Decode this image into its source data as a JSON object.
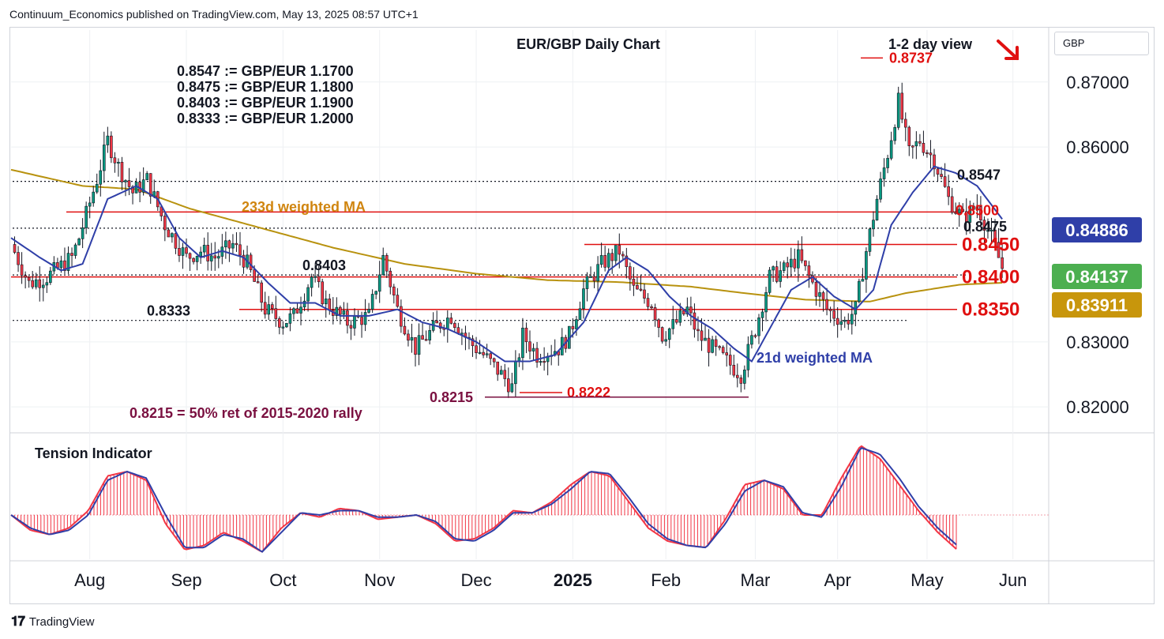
{
  "header": {
    "attribution": "Continuum_Economics published on TradingView.com, May 13, 2025 08:57 UTC+1"
  },
  "currency_label": "GBP",
  "footer": {
    "brand": "TradingView",
    "logo_icon": "tradingview-logo-icon"
  },
  "colors": {
    "up": "#089981",
    "down": "#f23645",
    "ma21": "#2f3fa8",
    "ma233": "#b8920f",
    "level": "#e01010",
    "annot_red": "#e01010",
    "annot_maroon": "#7a1040",
    "text": "#131722"
  },
  "chart_data": [
    {
      "type": "candlestick",
      "title": "EUR/GBP Daily Chart",
      "subtitle": "1-2 day view",
      "view_icon": "down-right-arrow-icon",
      "ylim": [
        0.816,
        0.878
      ],
      "y_ticks": [
        "0.87000",
        "0.86000",
        "0.83000",
        "0.82000"
      ],
      "y_tick_values": [
        0.87,
        0.86,
        0.83,
        0.82
      ],
      "x_ticks": [
        "Aug",
        "Sep",
        "Oct",
        "Nov",
        "Dec",
        "2025",
        "Feb",
        "Mar",
        "Apr",
        "May",
        "Jun"
      ],
      "conversions": [
        "0.8547 := GBP/EUR 1.1700",
        "0.8475 := GBP/EUR 1.1800",
        "0.8403 := GBP/EUR 1.1900",
        "0.8333 := GBP/EUR 1.2000"
      ],
      "levels": [
        {
          "value": 0.845,
          "label": "0.8450"
        },
        {
          "value": 0.84,
          "label": "0.8400"
        },
        {
          "value": 0.835,
          "label": "0.8350"
        },
        {
          "value": 0.85,
          "label": "0.8500"
        }
      ],
      "dotted_levels": [
        {
          "value": 0.8547,
          "label": "0.8547"
        },
        {
          "value": 0.8475,
          "label": "0.8475"
        },
        {
          "value": 0.8403,
          "label": "0.8403"
        },
        {
          "value": 0.8333,
          "label": "0.8333"
        }
      ],
      "annotations": [
        {
          "text": "0.8737",
          "value": 0.8737
        },
        {
          "text": "0.8222",
          "value": 0.8222
        },
        {
          "text": "0.8215",
          "value": 0.8215
        },
        {
          "text": "0.8215 = 50% ret of 2015-2020 rally"
        }
      ],
      "series_labels": {
        "ma233": "233d weighted MA",
        "ma21": "21d weighted MA"
      },
      "price_badges": [
        {
          "text": "0.84886",
          "value": 0.84886,
          "color": "#2f3fa8"
        },
        {
          "text": "0.84137",
          "value": 0.84137,
          "color": "#4caf50"
        },
        {
          "text": "0.83911",
          "value": 0.83911,
          "color": "#c8960c"
        }
      ],
      "close_path": [
        [
          0,
          0.845
        ],
        [
          5,
          0.839
        ],
        [
          10,
          0.84
        ],
        [
          17,
          0.843
        ],
        [
          19,
          0.846
        ],
        [
          24,
          0.855
        ],
        [
          27,
          0.861
        ],
        [
          30,
          0.857
        ],
        [
          34,
          0.853
        ],
        [
          38,
          0.855
        ],
        [
          43,
          0.848
        ],
        [
          49,
          0.843
        ],
        [
          53,
          0.844
        ],
        [
          57,
          0.843
        ],
        [
          62,
          0.845
        ],
        [
          66,
          0.842
        ],
        [
          71,
          0.835
        ],
        [
          76,
          0.833
        ],
        [
          79,
          0.834
        ],
        [
          84,
          0.84
        ],
        [
          88,
          0.836
        ],
        [
          94,
          0.833
        ],
        [
          100,
          0.834
        ],
        [
          104,
          0.843
        ],
        [
          108,
          0.835
        ],
        [
          113,
          0.829
        ],
        [
          118,
          0.832
        ],
        [
          123,
          0.834
        ],
        [
          128,
          0.83
        ],
        [
          132,
          0.828
        ],
        [
          137,
          0.825
        ],
        [
          140,
          0.823
        ],
        [
          143,
          0.831
        ],
        [
          147,
          0.828
        ],
        [
          153,
          0.829
        ],
        [
          156,
          0.831
        ],
        [
          160,
          0.838
        ],
        [
          165,
          0.842
        ],
        [
          170,
          0.844
        ],
        [
          174,
          0.838
        ],
        [
          179,
          0.836
        ],
        [
          182,
          0.831
        ],
        [
          186,
          0.833
        ],
        [
          189,
          0.835
        ],
        [
          192,
          0.831
        ],
        [
          196,
          0.829
        ],
        [
          200,
          0.827
        ],
        [
          204,
          0.825
        ],
        [
          208,
          0.832
        ],
        [
          212,
          0.84
        ],
        [
          216,
          0.841
        ],
        [
          220,
          0.843
        ],
        [
          224,
          0.839
        ],
        [
          228,
          0.835
        ],
        [
          233,
          0.833
        ],
        [
          236,
          0.835
        ],
        [
          239,
          0.844
        ],
        [
          242,
          0.852
        ],
        [
          245,
          0.859
        ],
        [
          248,
          0.867
        ],
        [
          251,
          0.859
        ],
        [
          254,
          0.861
        ],
        [
          258,
          0.858
        ],
        [
          262,
          0.852
        ],
        [
          266,
          0.849
        ],
        [
          270,
          0.851
        ],
        [
          274,
          0.846
        ],
        [
          277,
          0.8414
        ]
      ],
      "ma21_path": [
        [
          0,
          0.846
        ],
        [
          8,
          0.843
        ],
        [
          14,
          0.841
        ],
        [
          20,
          0.842
        ],
        [
          27,
          0.852
        ],
        [
          35,
          0.854
        ],
        [
          41,
          0.852
        ],
        [
          47,
          0.846
        ],
        [
          53,
          0.843
        ],
        [
          59,
          0.844
        ],
        [
          65,
          0.843
        ],
        [
          72,
          0.839
        ],
        [
          78,
          0.836
        ],
        [
          85,
          0.836
        ],
        [
          92,
          0.834
        ],
        [
          100,
          0.834
        ],
        [
          108,
          0.835
        ],
        [
          115,
          0.833
        ],
        [
          122,
          0.832
        ],
        [
          130,
          0.83
        ],
        [
          138,
          0.827
        ],
        [
          145,
          0.827
        ],
        [
          152,
          0.828
        ],
        [
          160,
          0.833
        ],
        [
          167,
          0.841
        ],
        [
          172,
          0.843
        ],
        [
          178,
          0.841
        ],
        [
          184,
          0.837
        ],
        [
          190,
          0.834
        ],
        [
          196,
          0.832
        ],
        [
          202,
          0.829
        ],
        [
          207,
          0.827
        ],
        [
          212,
          0.832
        ],
        [
          218,
          0.838
        ],
        [
          224,
          0.84
        ],
        [
          230,
          0.837
        ],
        [
          236,
          0.835
        ],
        [
          241,
          0.838
        ],
        [
          246,
          0.848
        ],
        [
          252,
          0.853
        ],
        [
          258,
          0.857
        ],
        [
          264,
          0.856
        ],
        [
          270,
          0.854
        ],
        [
          277,
          0.8489
        ]
      ],
      "ma233_path": [
        [
          0,
          0.8565
        ],
        [
          20,
          0.854
        ],
        [
          35,
          0.8535
        ],
        [
          50,
          0.8505
        ],
        [
          70,
          0.8475
        ],
        [
          90,
          0.8445
        ],
        [
          110,
          0.842
        ],
        [
          130,
          0.8405
        ],
        [
          150,
          0.8395
        ],
        [
          170,
          0.8392
        ],
        [
          190,
          0.8385
        ],
        [
          205,
          0.8375
        ],
        [
          222,
          0.8365
        ],
        [
          240,
          0.8362
        ],
        [
          250,
          0.8375
        ],
        [
          265,
          0.8388
        ],
        [
          277,
          0.8391
        ]
      ],
      "x_tick_index": [
        22,
        49,
        76,
        103,
        130,
        157,
        183,
        208,
        231,
        256,
        280
      ],
      "total_sessions": 290
    },
    {
      "type": "line",
      "title": "Tension Indicator",
      "series": [
        {
          "color": "#f23645",
          "values": [
            0,
            -0.35,
            -0.45,
            -0.3,
            0.1,
            0.9,
            1.0,
            0.8,
            -0.2,
            -0.8,
            -0.7,
            -0.4,
            -0.6,
            -0.85,
            -0.3,
            0.05,
            -0.05,
            0.15,
            0.1,
            -0.1,
            -0.05,
            0.0,
            -0.2,
            -0.6,
            -0.55,
            -0.3,
            0.1,
            0.05,
            0.3,
            0.7,
            1.0,
            0.9,
            0.3,
            -0.3,
            -0.6,
            -0.7,
            -0.75,
            -0.1,
            0.7,
            0.8,
            0.6,
            0.0,
            0.0,
            0.85,
            1.6,
            1.3,
            0.7,
            0.1,
            -0.4,
            -0.8
          ]
        },
        {
          "color": "#2f3fa8",
          "values": [
            0,
            -0.3,
            -0.45,
            -0.35,
            0.0,
            0.8,
            1.0,
            0.85,
            0.0,
            -0.75,
            -0.75,
            -0.45,
            -0.55,
            -0.85,
            -0.4,
            0.05,
            -0.0,
            0.1,
            0.1,
            -0.05,
            -0.05,
            0.0,
            -0.15,
            -0.55,
            -0.6,
            -0.35,
            0.05,
            0.05,
            0.25,
            0.6,
            1.0,
            0.95,
            0.4,
            -0.2,
            -0.55,
            -0.7,
            -0.75,
            -0.2,
            0.55,
            0.8,
            0.65,
            0.05,
            -0.05,
            0.65,
            1.55,
            1.4,
            0.85,
            0.2,
            -0.3,
            -0.7
          ]
        }
      ]
    }
  ]
}
